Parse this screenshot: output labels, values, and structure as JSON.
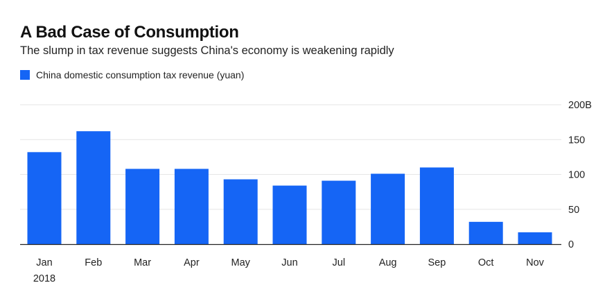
{
  "chart_data": {
    "type": "bar",
    "title": "A Bad Case of Consumption",
    "subtitle": "The slump in tax revenue suggests China's economy is weakening rapidly",
    "categories": [
      "Jan",
      "Feb",
      "Mar",
      "Apr",
      "May",
      "Jun",
      "Jul",
      "Aug",
      "Sep",
      "Oct",
      "Nov"
    ],
    "category_sublabel": "2018",
    "series": [
      {
        "name": "China domestic consumption tax revenue (yuan)",
        "color": "#1565f5",
        "values": [
          132,
          162,
          108,
          108,
          93,
          84,
          91,
          101,
          110,
          32,
          17
        ]
      }
    ],
    "y_axis": {
      "ticks": [
        0,
        50,
        100,
        150,
        200
      ],
      "tick_labels": [
        "0",
        "50",
        "100",
        "150",
        "200B"
      ],
      "position": "right",
      "range": [
        0,
        200
      ]
    },
    "grid": true,
    "legend": "top-left"
  }
}
